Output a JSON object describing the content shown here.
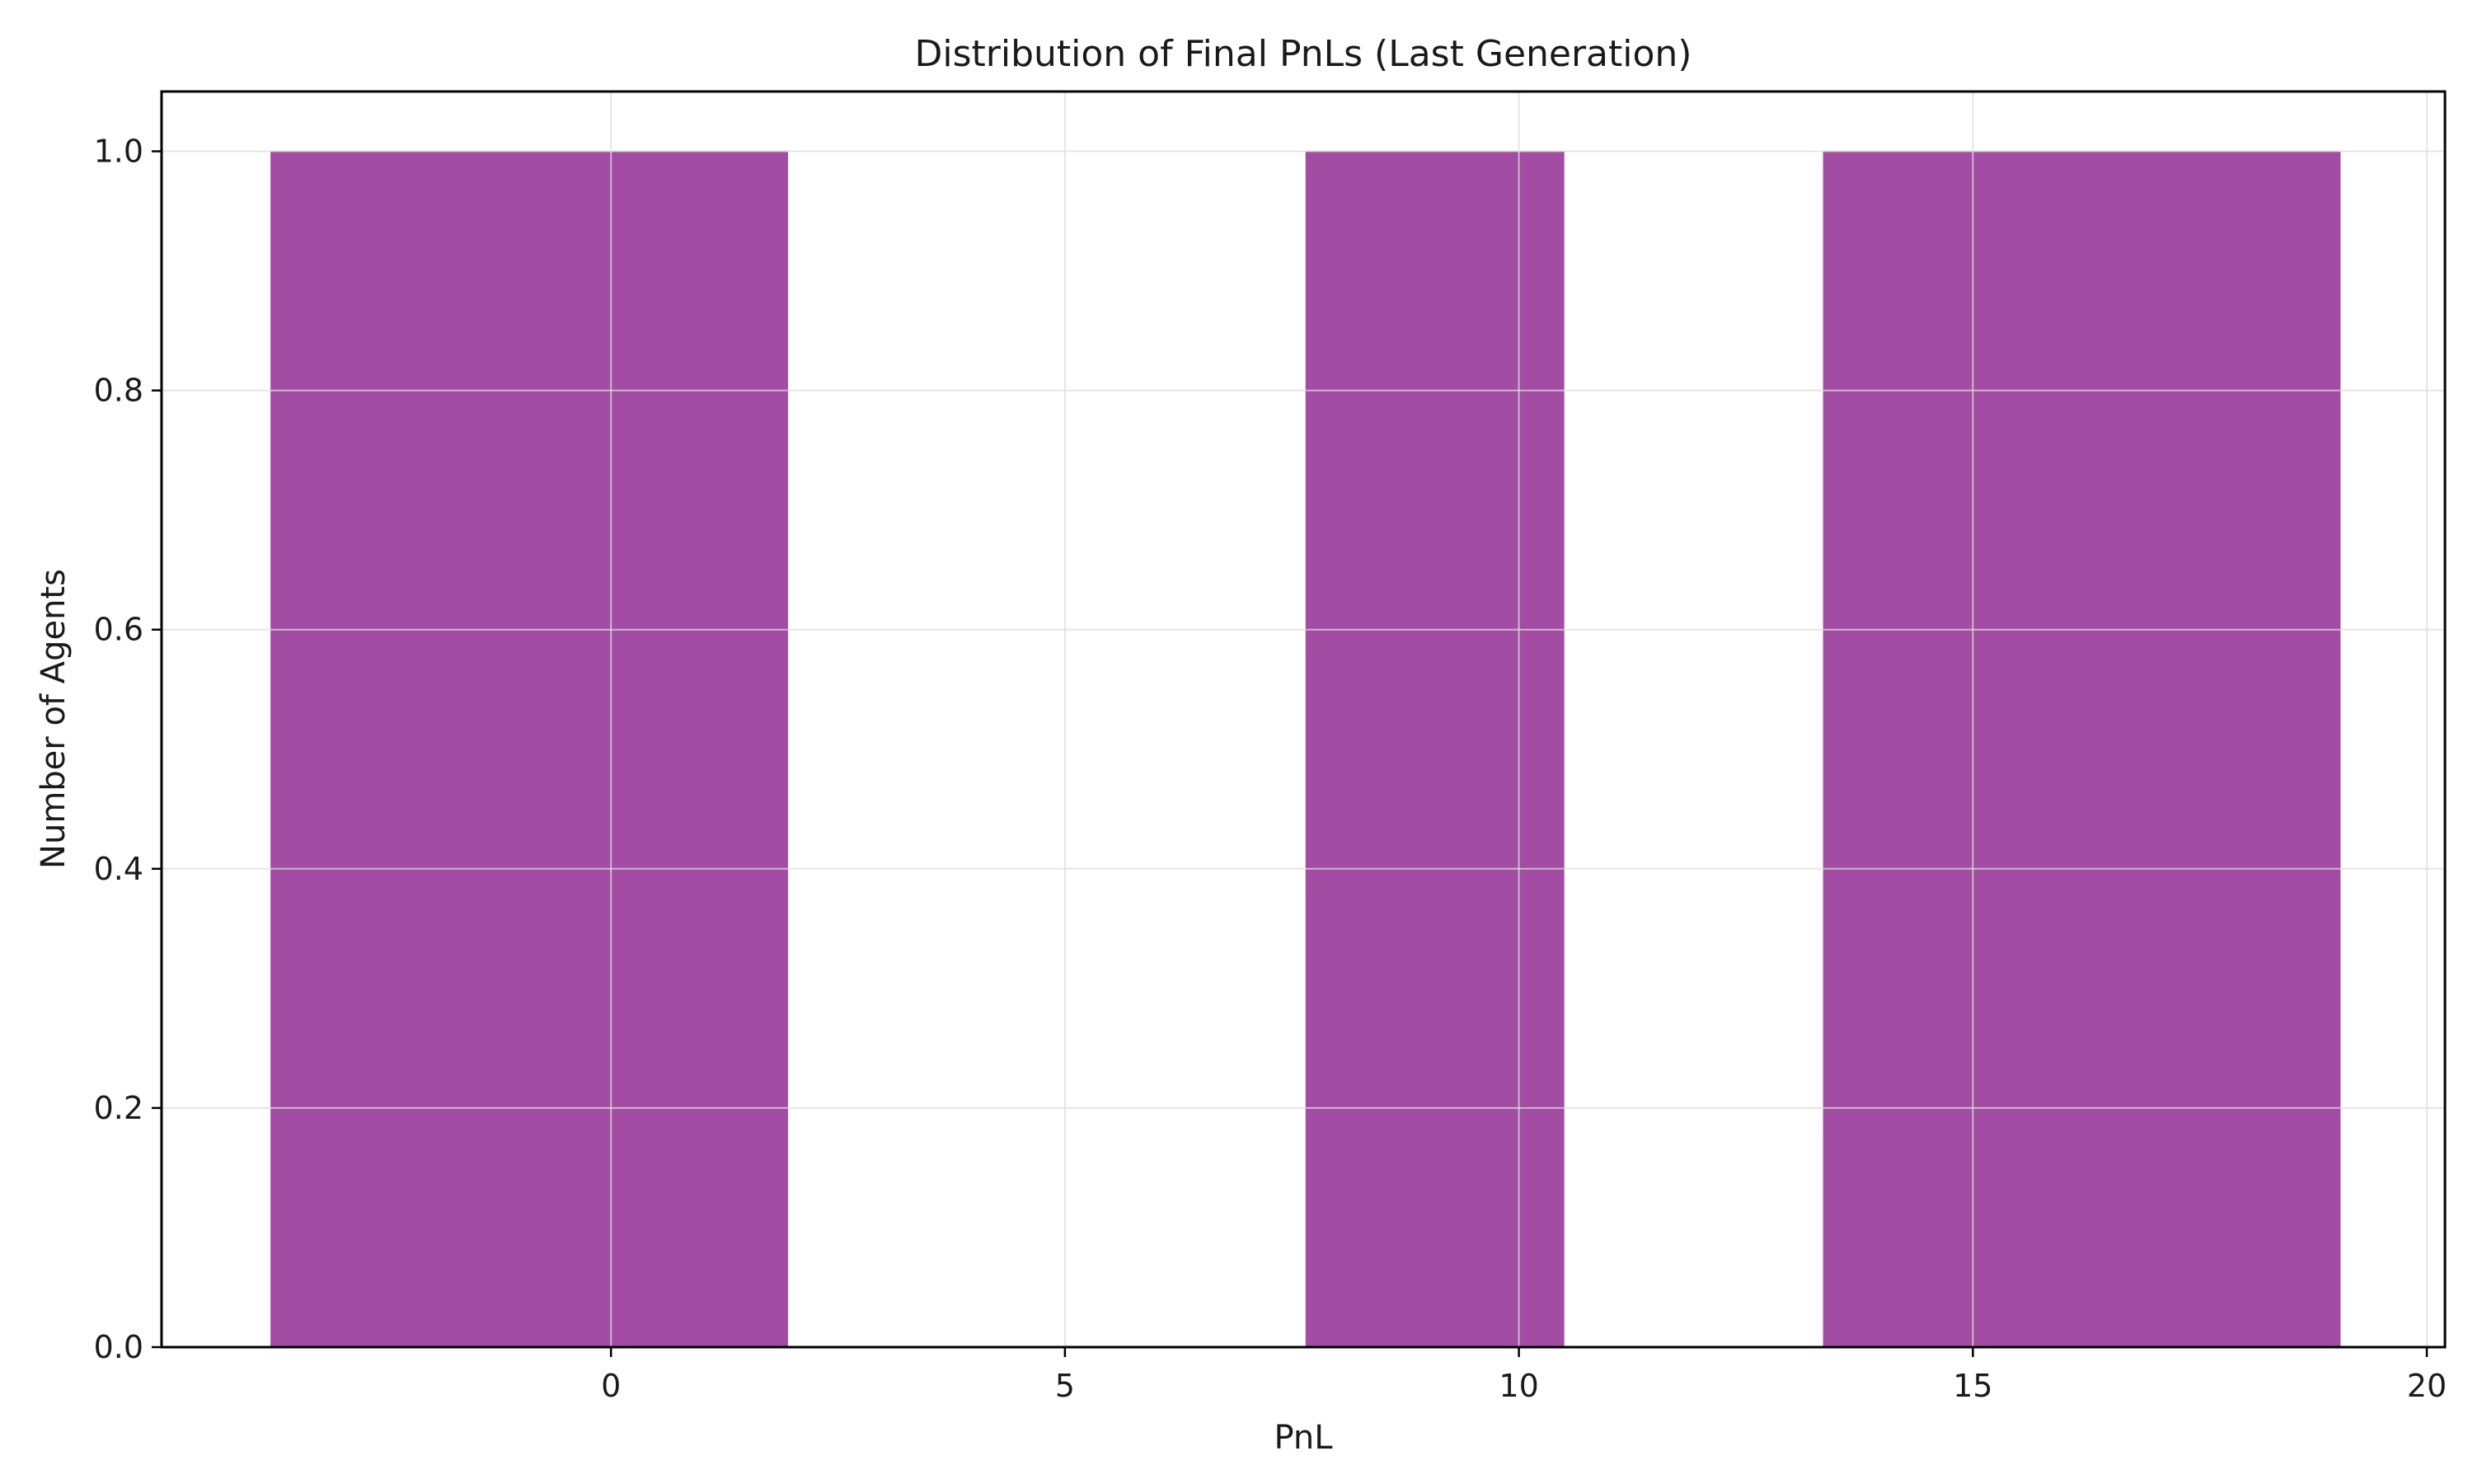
{
  "chart_data": {
    "type": "bar",
    "title": "Distribution of Final PnLs (Last Generation)",
    "xlabel": "PnL",
    "ylabel": "Number of Agents",
    "xlim": [
      -4.95,
      20.2
    ],
    "ylim": [
      0,
      1.05
    ],
    "xticks": [
      0,
      5,
      10,
      15,
      20
    ],
    "yticks": [
      0.0,
      0.2,
      0.4,
      0.6,
      0.8,
      1.0
    ],
    "ytick_labels": [
      "0.0",
      "0.2",
      "0.4",
      "0.6",
      "0.8",
      "1.0"
    ],
    "grid": true,
    "bar_color": "#a24ca3",
    "bins": [
      {
        "x0": -3.75,
        "x1": 1.95,
        "count": 1
      },
      {
        "x0": 7.65,
        "x1": 10.5,
        "count": 1
      },
      {
        "x0": 13.35,
        "x1": 19.05,
        "count": 1
      }
    ]
  }
}
